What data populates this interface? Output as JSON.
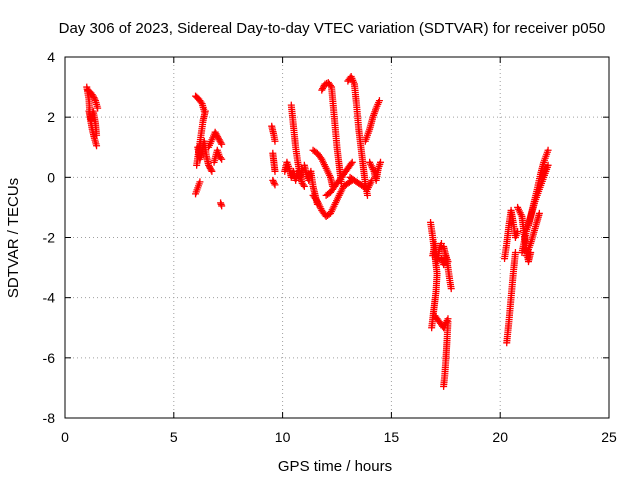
{
  "chart_data": {
    "type": "scatter",
    "title": "Day 306 of 2023, Sidereal Day-to-day VTEC variation (SDTVAR) for receiver p050",
    "xlabel": "GPS time / hours",
    "ylabel": "SDTVAR / TECUs",
    "xlim": [
      0,
      25
    ],
    "ylim": [
      -8,
      4
    ],
    "xticks": [
      0,
      5,
      10,
      15,
      20,
      25
    ],
    "yticks": [
      -8,
      -6,
      -4,
      -2,
      0,
      2,
      4
    ],
    "xtick_labels": [
      "0",
      "5",
      "10",
      "15",
      "20",
      "25"
    ],
    "ytick_labels": [
      "-8",
      "-6",
      "-4",
      "-2",
      "0",
      "2",
      "4"
    ],
    "grid": true,
    "marker": "plus",
    "color": "#ff0000",
    "series": [
      {
        "name": "SDTVAR",
        "polylines": [
          [
            [
              1.0,
              3.0
            ],
            [
              1.1,
              2.6
            ],
            [
              1.15,
              2.0
            ],
            [
              1.25,
              1.6
            ],
            [
              1.35,
              1.3
            ],
            [
              1.45,
              1.05
            ]
          ],
          [
            [
              1.05,
              2.9
            ],
            [
              1.2,
              2.8
            ],
            [
              1.3,
              2.7
            ],
            [
              1.4,
              2.55
            ],
            [
              1.5,
              2.3
            ]
          ],
          [
            [
              1.1,
              2.2
            ],
            [
              1.2,
              1.9
            ],
            [
              1.3,
              2.2
            ],
            [
              1.4,
              1.8
            ],
            [
              1.45,
              1.4
            ]
          ],
          [
            [
              6.0,
              2.7
            ],
            [
              6.15,
              2.6
            ],
            [
              6.3,
              2.45
            ],
            [
              6.4,
              2.2
            ]
          ],
          [
            [
              6.1,
              1.0
            ],
            [
              6.2,
              0.6
            ],
            [
              6.3,
              0.8
            ],
            [
              6.4,
              1.2
            ],
            [
              6.5,
              0.7
            ],
            [
              6.6,
              0.4
            ],
            [
              6.75,
              0.2
            ]
          ],
          [
            [
              6.05,
              0.4
            ],
            [
              6.15,
              0.9
            ],
            [
              6.25,
              1.4
            ],
            [
              6.35,
              1.9
            ],
            [
              6.45,
              2.2
            ]
          ],
          [
            [
              6.6,
              1.0
            ],
            [
              6.75,
              1.25
            ],
            [
              6.9,
              1.5
            ],
            [
              7.05,
              1.3
            ],
            [
              7.2,
              1.1
            ]
          ],
          [
            [
              6.85,
              0.5
            ],
            [
              7.0,
              0.9
            ],
            [
              7.1,
              0.7
            ],
            [
              7.2,
              0.6
            ]
          ],
          [
            [
              6.0,
              -0.55
            ],
            [
              6.1,
              -0.35
            ],
            [
              6.2,
              -0.15
            ]
          ],
          [
            [
              7.15,
              -0.85
            ],
            [
              7.2,
              -0.95
            ]
          ],
          [
            [
              9.5,
              1.7
            ],
            [
              9.6,
              1.4
            ],
            [
              9.65,
              1.2
            ]
          ],
          [
            [
              9.55,
              0.8
            ],
            [
              9.6,
              0.5
            ],
            [
              9.65,
              0.2
            ]
          ],
          [
            [
              9.55,
              -0.1
            ],
            [
              9.65,
              -0.25
            ]
          ],
          [
            [
              10.4,
              2.4
            ],
            [
              10.5,
              1.7
            ],
            [
              10.6,
              1.0
            ],
            [
              10.7,
              0.5
            ],
            [
              10.8,
              0.1
            ],
            [
              10.9,
              -0.2
            ],
            [
              11.0,
              -0.3
            ]
          ],
          [
            [
              10.1,
              0.2
            ],
            [
              10.2,
              0.5
            ],
            [
              10.3,
              0.3
            ],
            [
              10.4,
              0.0
            ],
            [
              10.5,
              0.2
            ],
            [
              10.6,
              -0.1
            ],
            [
              10.7,
              0.2
            ],
            [
              10.8,
              0.0
            ],
            [
              10.9,
              0.3
            ]
          ],
          [
            [
              11.0,
              0.4
            ],
            [
              11.1,
              0.1
            ],
            [
              11.2,
              -0.1
            ],
            [
              11.3,
              0.2
            ],
            [
              11.4,
              -0.3
            ],
            [
              11.5,
              -0.6
            ],
            [
              11.6,
              -0.9
            ]
          ],
          [
            [
              11.4,
              0.9
            ],
            [
              11.6,
              0.8
            ],
            [
              11.8,
              0.6
            ],
            [
              12.0,
              0.3
            ],
            [
              12.2,
              0.0
            ],
            [
              12.3,
              -0.3
            ]
          ],
          [
            [
              11.8,
              2.9
            ],
            [
              11.95,
              3.1
            ],
            [
              12.1,
              3.15
            ],
            [
              12.25,
              3.0
            ],
            [
              12.3,
              2.6
            ],
            [
              12.4,
              1.8
            ],
            [
              12.5,
              1.0
            ],
            [
              12.6,
              0.4
            ],
            [
              12.7,
              -0.2
            ]
          ],
          [
            [
              11.4,
              -0.6
            ],
            [
              11.6,
              -0.8
            ],
            [
              11.8,
              -1.1
            ],
            [
              12.0,
              -1.3
            ],
            [
              12.2,
              -1.2
            ],
            [
              12.4,
              -0.9
            ],
            [
              12.6,
              -0.6
            ],
            [
              12.8,
              -0.3
            ],
            [
              13.0,
              -0.2
            ],
            [
              13.2,
              -0.1
            ]
          ],
          [
            [
              12.0,
              -0.6
            ],
            [
              12.2,
              -0.5
            ],
            [
              12.4,
              -0.3
            ],
            [
              12.6,
              -0.1
            ],
            [
              12.8,
              0.1
            ],
            [
              13.0,
              0.3
            ],
            [
              13.2,
              0.5
            ]
          ],
          [
            [
              13.0,
              3.2
            ],
            [
              13.15,
              3.35
            ],
            [
              13.3,
              3.1
            ],
            [
              13.4,
              2.4
            ],
            [
              13.5,
              1.6
            ],
            [
              13.6,
              1.0
            ],
            [
              13.7,
              0.4
            ],
            [
              13.8,
              -0.2
            ],
            [
              13.9,
              -0.6
            ]
          ],
          [
            [
              13.1,
              0.0
            ],
            [
              13.3,
              -0.1
            ],
            [
              13.5,
              -0.2
            ],
            [
              13.7,
              -0.3
            ],
            [
              13.9,
              -0.4
            ],
            [
              14.1,
              -0.1
            ]
          ],
          [
            [
              14.0,
              0.5
            ],
            [
              14.2,
              0.2
            ],
            [
              14.3,
              -0.1
            ],
            [
              14.4,
              0.3
            ],
            [
              14.5,
              0.5
            ]
          ],
          [
            [
              13.8,
              1.2
            ],
            [
              14.0,
              1.6
            ],
            [
              14.15,
              2.0
            ],
            [
              14.3,
              2.3
            ],
            [
              14.45,
              2.55
            ]
          ],
          [
            [
              16.8,
              -1.5
            ],
            [
              16.9,
              -2.0
            ],
            [
              17.0,
              -2.6
            ],
            [
              17.1,
              -3.2
            ],
            [
              17.05,
              -3.8
            ],
            [
              16.95,
              -4.4
            ],
            [
              16.85,
              -5.0
            ]
          ],
          [
            [
              16.9,
              -2.6
            ],
            [
              17.0,
              -2.2
            ],
            [
              17.1,
              -2.8
            ],
            [
              17.2,
              -2.4
            ],
            [
              17.3,
              -2.2
            ]
          ],
          [
            [
              17.0,
              -4.6
            ],
            [
              17.2,
              -4.8
            ],
            [
              17.4,
              -5.0
            ],
            [
              17.6,
              -4.7
            ]
          ],
          [
            [
              17.4,
              -2.3
            ],
            [
              17.5,
              -2.6
            ],
            [
              17.6,
              -3.0
            ],
            [
              17.7,
              -3.5
            ],
            [
              17.75,
              -3.7
            ]
          ],
          [
            [
              17.6,
              -4.8
            ],
            [
              17.55,
              -5.5
            ],
            [
              17.5,
              -6.1
            ],
            [
              17.45,
              -6.6
            ],
            [
              17.4,
              -6.95
            ]
          ],
          [
            [
              17.3,
              -2.7
            ],
            [
              17.4,
              -2.9
            ],
            [
              17.5,
              -2.6
            ],
            [
              17.6,
              -2.8
            ]
          ],
          [
            [
              20.3,
              -5.5
            ],
            [
              20.4,
              -4.8
            ],
            [
              20.5,
              -4.0
            ],
            [
              20.6,
              -3.2
            ],
            [
              20.7,
              -2.5
            ]
          ],
          [
            [
              20.2,
              -2.7
            ],
            [
              20.3,
              -2.2
            ],
            [
              20.4,
              -1.6
            ],
            [
              20.5,
              -1.1
            ],
            [
              20.6,
              -1.5
            ],
            [
              20.7,
              -2.0
            ],
            [
              20.8,
              -1.8
            ]
          ],
          [
            [
              20.8,
              -1.0
            ],
            [
              21.0,
              -1.3
            ],
            [
              21.1,
              -1.9
            ],
            [
              21.2,
              -2.4
            ],
            [
              21.3,
              -2.8
            ],
            [
              21.4,
              -2.5
            ]
          ],
          [
            [
              21.0,
              -2.5
            ],
            [
              21.2,
              -1.8
            ],
            [
              21.4,
              -1.3
            ],
            [
              21.6,
              -0.8
            ],
            [
              21.8,
              -0.4
            ],
            [
              22.0,
              0.0
            ],
            [
              22.2,
              0.4
            ]
          ],
          [
            [
              21.3,
              -1.6
            ],
            [
              21.5,
              -1.0
            ],
            [
              21.7,
              -0.4
            ],
            [
              21.85,
              0.1
            ],
            [
              22.0,
              0.5
            ],
            [
              22.2,
              0.9
            ]
          ],
          [
            [
              21.2,
              -2.6
            ],
            [
              21.4,
              -2.2
            ],
            [
              21.6,
              -1.7
            ],
            [
              21.8,
              -1.2
            ]
          ]
        ]
      }
    ]
  }
}
